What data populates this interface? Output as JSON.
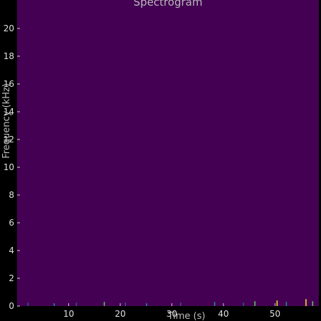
{
  "chart_data": {
    "type": "heatmap",
    "title": "Spectrogram",
    "xlabel": "Time (s)",
    "ylabel": "Frequency (kHz)",
    "xlim": [
      0,
      58.5
    ],
    "ylim": [
      0,
      22.05
    ],
    "x_ticks": [
      10,
      20,
      30,
      40,
      50
    ],
    "y_ticks": [
      0,
      2,
      4,
      6,
      8,
      10,
      12,
      14,
      16,
      18,
      20
    ],
    "colormap": "viridis",
    "background_color": "#440154",
    "low_frequency_energy": [
      {
        "t": 2.0,
        "f": 0.25,
        "color": "#3b528b"
      },
      {
        "t": 7.1,
        "f": 0.2,
        "color": "#21918c"
      },
      {
        "t": 11.4,
        "f": 0.25,
        "color": "#3b528b"
      },
      {
        "t": 16.8,
        "f": 0.3,
        "color": "#5ec962"
      },
      {
        "t": 20.9,
        "f": 0.25,
        "color": "#3b528b"
      },
      {
        "t": 25.0,
        "f": 0.2,
        "color": "#21918c"
      },
      {
        "t": 31.6,
        "f": 0.25,
        "color": "#3b528b"
      },
      {
        "t": 38.2,
        "f": 0.3,
        "color": "#21918c"
      },
      {
        "t": 43.8,
        "f": 0.25,
        "color": "#3b528b"
      },
      {
        "t": 46.0,
        "f": 0.35,
        "color": "#5ec962"
      },
      {
        "t": 50.3,
        "f": 0.4,
        "color": "#fde725"
      },
      {
        "t": 52.1,
        "f": 0.3,
        "color": "#21918c"
      },
      {
        "t": 55.9,
        "f": 0.5,
        "color": "#fde725"
      },
      {
        "t": 57.2,
        "f": 0.35,
        "color": "#5ec962"
      }
    ]
  }
}
